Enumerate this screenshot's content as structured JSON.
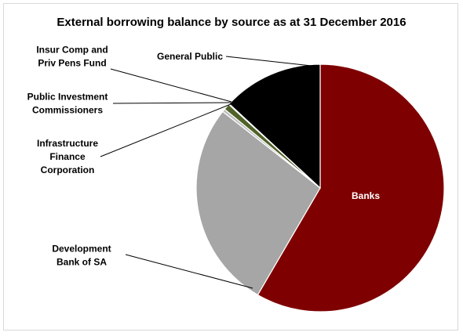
{
  "chart_data": {
    "type": "pie",
    "title": "External borrowing balance by source as at 31 December 2016",
    "slices": [
      {
        "name": "Banks",
        "value": 58.4,
        "color": "#7f0000",
        "label_lines": [
          "Banks"
        ]
      },
      {
        "name": "Development Bank of SA",
        "value": 27.2,
        "color": "#a6a6a6",
        "label_lines": [
          "Development",
          "Bank of SA"
        ]
      },
      {
        "name": "Infrastructure Finance Corporation",
        "value": 0.4,
        "color": "#bfbfbf",
        "label_lines": [
          "Infrastructure",
          "Finance",
          "Corporation"
        ]
      },
      {
        "name": "Public Investment Commissioners",
        "value": 0.8,
        "color": "#4f6228",
        "label_lines": [
          "Public Investment",
          "Commissioners"
        ]
      },
      {
        "name": "Insur Comp and Priv Pens Fund",
        "value": 0.1,
        "color": "#000000",
        "label_lines": [
          "Insur Comp and",
          "Priv Pens Fund"
        ]
      },
      {
        "name": "General Public",
        "value": 13.1,
        "color": "#000000",
        "label_lines": [
          "General Public"
        ]
      }
    ],
    "legend": "none",
    "labels": "category names with leader lines"
  }
}
